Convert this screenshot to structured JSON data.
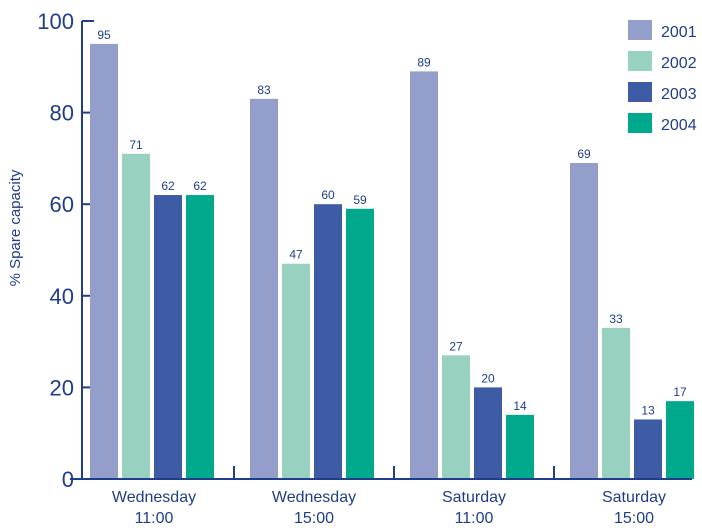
{
  "chart_data": {
    "type": "bar",
    "categories": [
      [
        "Wednesday",
        "11:00"
      ],
      [
        "Wednesday",
        "15:00"
      ],
      [
        "Saturday",
        "11:00"
      ],
      [
        "Saturday",
        "15:00"
      ]
    ],
    "series": [
      {
        "name": "2001",
        "color": "#939fca",
        "values": [
          95,
          83,
          89,
          69
        ]
      },
      {
        "name": "2002",
        "color": "#99d1c1",
        "values": [
          71,
          47,
          27,
          33
        ]
      },
      {
        "name": "2003",
        "color": "#3e5ba5",
        "values": [
          62,
          60,
          20,
          13
        ]
      },
      {
        "name": "2004",
        "color": "#00a98c",
        "values": [
          62,
          59,
          14,
          17
        ]
      }
    ],
    "data_labels": [
      [
        "95",
        "83",
        "89",
        "69"
      ],
      [
        "71",
        "47",
        "27",
        "33"
      ],
      [
        "62",
        "60",
        "20",
        "13"
      ],
      [
        "62",
        "59",
        "14",
        "17"
      ]
    ],
    "ylabel": "% Spare capacity",
    "yticks": [
      0,
      20,
      40,
      60,
      80,
      100
    ],
    "ylim": [
      0,
      100
    ],
    "legend_position": "top-right",
    "grid": false,
    "axis_color": "#1f3d8a"
  }
}
